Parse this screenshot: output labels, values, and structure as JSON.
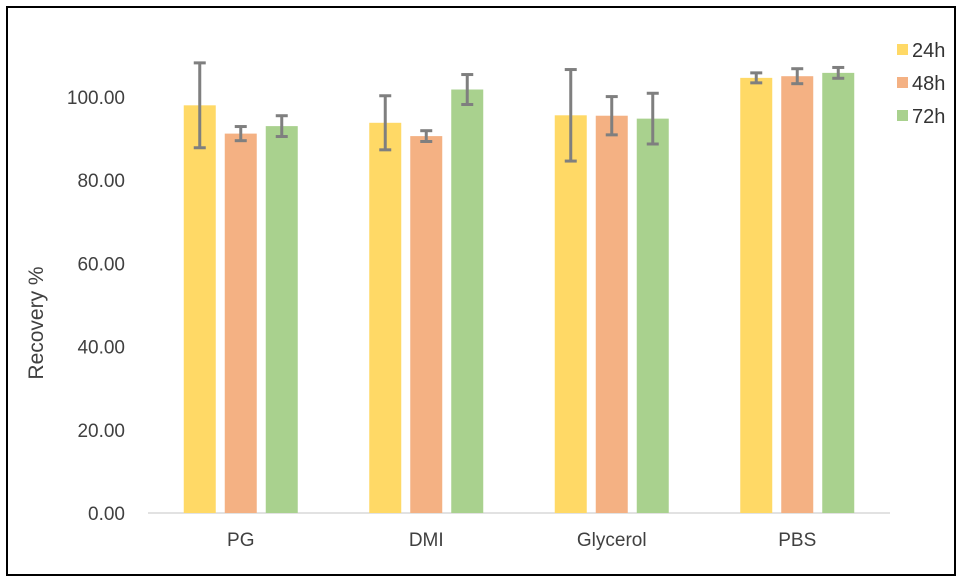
{
  "chart_data": {
    "type": "bar",
    "title": "",
    "xlabel": "",
    "ylabel": "Recovery %",
    "ylim": [
      0,
      120
    ],
    "yticks": [
      "0.00",
      "20.00",
      "40.00",
      "60.00",
      "80.00",
      "100.00"
    ],
    "categories": [
      "PG",
      "DMI",
      "Glycerol",
      "PBS"
    ],
    "grid": false,
    "legend_position": "top-right",
    "series": [
      {
        "name": "24h",
        "color": "#FFD966",
        "values": [
          98.0,
          93.8,
          95.6,
          104.6
        ],
        "errors": [
          10.2,
          6.5,
          11.0,
          1.2
        ]
      },
      {
        "name": "48h",
        "color": "#F4B183",
        "values": [
          91.2,
          90.6,
          95.5,
          105.0
        ],
        "errors": [
          1.7,
          1.3,
          4.6,
          1.8
        ]
      },
      {
        "name": "72h",
        "color": "#A9D18E",
        "values": [
          93.0,
          101.8,
          94.8,
          105.8
        ],
        "errors": [
          2.5,
          3.6,
          6.1,
          1.3
        ]
      }
    ],
    "error_bar_color": "#7F7F7F",
    "axis_color": "#D9D9D9"
  }
}
